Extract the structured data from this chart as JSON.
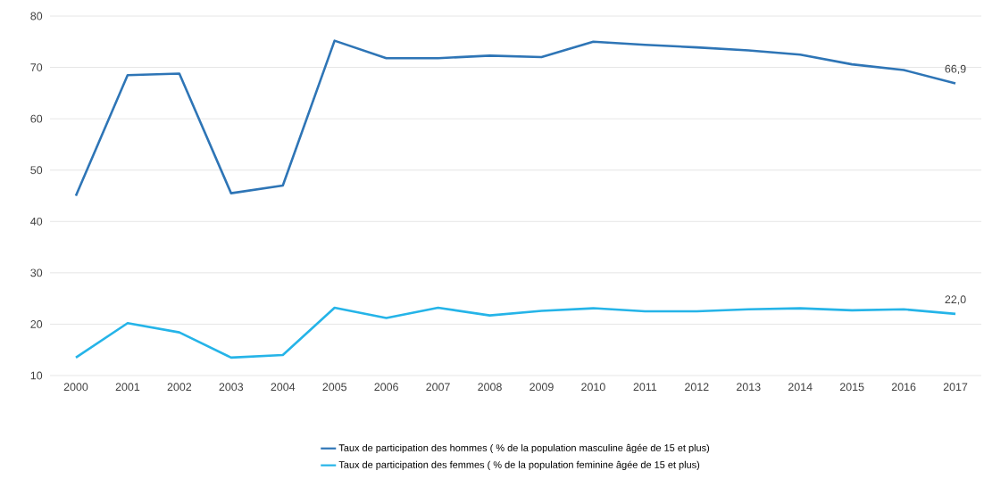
{
  "chart_data": {
    "type": "line",
    "categories": [
      "2000",
      "2001",
      "2002",
      "2003",
      "2004",
      "2005",
      "2006",
      "2007",
      "2008",
      "2009",
      "2010",
      "2011",
      "2012",
      "2013",
      "2014",
      "2015",
      "2016",
      "2017"
    ],
    "series": [
      {
        "name": "Taux de participation des hommes  ( % de la population masculine âgée de 15 et plus)",
        "color": "#2e75b6",
        "values": [
          45.0,
          68.5,
          68.8,
          45.5,
          47.0,
          75.2,
          71.8,
          71.8,
          72.3,
          72.0,
          75.0,
          74.4,
          73.9,
          73.3,
          72.5,
          70.6,
          69.5,
          66.9
        ]
      },
      {
        "name": "Taux de participation des femmes  ( % de la population feminine âgée de 15 et plus)",
        "color": "#25b4e8",
        "values": [
          13.5,
          20.2,
          18.4,
          13.5,
          14.0,
          23.2,
          21.2,
          23.2,
          21.7,
          22.6,
          23.1,
          22.5,
          22.5,
          22.9,
          23.1,
          22.7,
          22.9,
          22.0
        ]
      }
    ],
    "ylim": [
      10,
      80
    ],
    "yticks": [
      10,
      20,
      30,
      40,
      50,
      60,
      70,
      80
    ],
    "grid": "y",
    "legend": "bottom",
    "marker": "none",
    "line_style": "solid",
    "annotations": [
      {
        "text": "66,9",
        "x": "2017",
        "y": 66.9
      },
      {
        "text": "22,0",
        "x": "2017",
        "y": 22.0
      }
    ]
  }
}
